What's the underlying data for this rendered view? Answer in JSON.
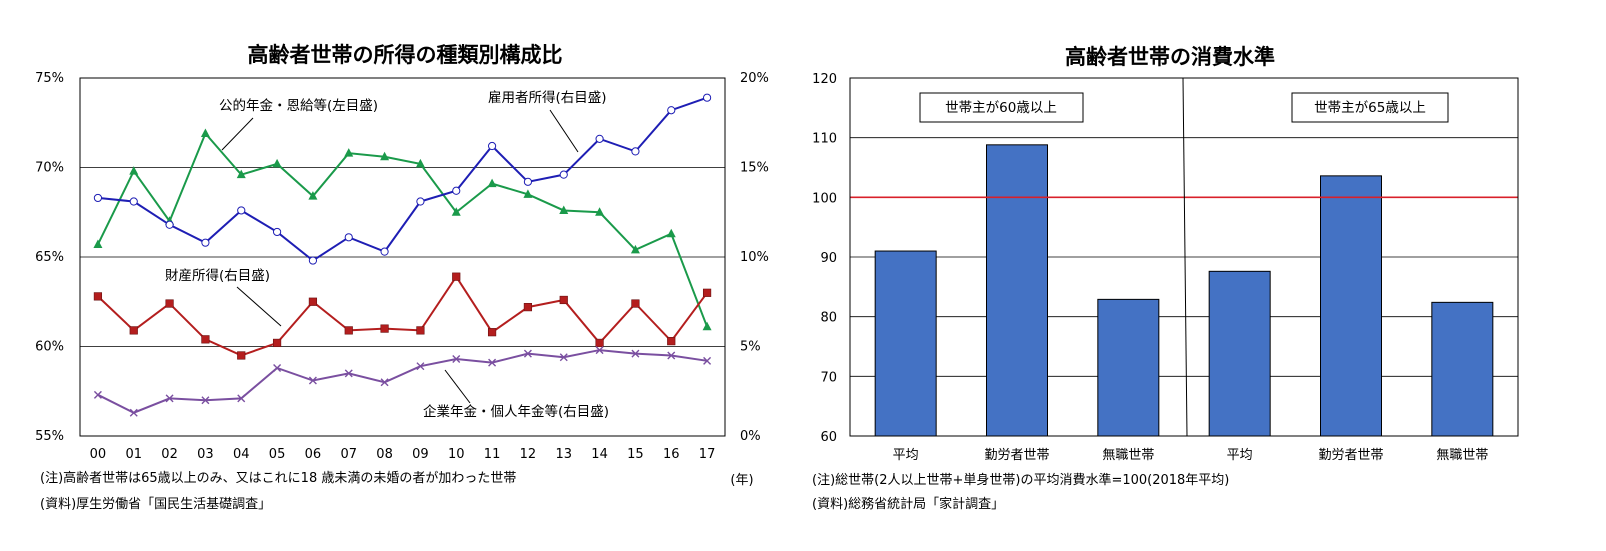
{
  "chart_data": [
    {
      "type": "line",
      "title": "高齢者世帯の所得の種類別構成比",
      "categories": [
        "00",
        "01",
        "02",
        "03",
        "04",
        "05",
        "06",
        "07",
        "08",
        "09",
        "10",
        "11",
        "12",
        "13",
        "14",
        "15",
        "16",
        "17"
      ],
      "x_unit": "(年)",
      "left_axis": {
        "ticks": [
          "55%",
          "60%",
          "65%",
          "70%",
          "75%"
        ],
        "ylim": [
          55,
          75
        ]
      },
      "right_axis": {
        "ticks": [
          "0%",
          "5%",
          "10%",
          "15%",
          "20%"
        ],
        "ylim": [
          0,
          20
        ]
      },
      "grid": true,
      "series": [
        {
          "name": "公的年金・恩給等(左目盛)",
          "axis": "left",
          "color": "#1a9a4a",
          "marker": "triangle",
          "values": [
            65.7,
            69.8,
            67.0,
            71.9,
            69.6,
            70.2,
            68.4,
            70.8,
            70.6,
            70.2,
            67.5,
            69.1,
            68.5,
            67.6,
            67.5,
            65.4,
            66.3,
            61.1
          ]
        },
        {
          "name": "雇用者所得(右目盛)",
          "axis": "right",
          "color": "#1e1eb4",
          "marker": "circle",
          "values": [
            13.3,
            13.1,
            11.8,
            10.8,
            12.6,
            11.4,
            9.8,
            11.1,
            10.3,
            13.1,
            13.7,
            16.2,
            14.2,
            14.6,
            16.6,
            15.9,
            18.2,
            18.9
          ]
        },
        {
          "name": "財産所得(右目盛)",
          "axis": "right",
          "color": "#b41e1e",
          "marker": "square",
          "values": [
            7.8,
            5.9,
            7.4,
            5.4,
            4.5,
            5.2,
            7.5,
            5.9,
            6.0,
            5.9,
            8.9,
            5.8,
            7.2,
            7.6,
            5.2,
            7.4,
            5.3,
            8.0
          ]
        },
        {
          "name": "企業年金・個人年金等(右目盛)",
          "axis": "right",
          "color": "#7a4fa0",
          "marker": "x",
          "values": [
            2.3,
            1.3,
            2.1,
            2.0,
            2.1,
            3.8,
            3.1,
            3.5,
            3.0,
            3.9,
            4.3,
            4.1,
            4.6,
            4.4,
            4.8,
            4.6,
            4.5,
            4.2
          ]
        }
      ],
      "notes": [
        "(注)高齢者世帯は65歳以上のみ、又はこれに18 歳未満の未婚の者が加わった世帯",
        "(資料)厚生労働省「国民生活基礎調査」"
      ]
    },
    {
      "type": "bar",
      "title": "高齢者世帯の消費水準",
      "categories": [
        "平均",
        "勤労者世帯",
        "無職世帯",
        "平均",
        "勤労者世帯",
        "無職世帯"
      ],
      "groups": [
        "世帯主が60歳以上",
        "世帯主が65歳以上"
      ],
      "values": [
        91.0,
        108.8,
        82.9,
        87.6,
        103.6,
        82.4
      ],
      "ylim": [
        60,
        120
      ],
      "y_ticks": [
        "60",
        "70",
        "80",
        "90",
        "100",
        "110",
        "120"
      ],
      "reference_line": 100,
      "bar_color": "#4472c4",
      "reference_color": "#d9202a",
      "grid": true,
      "notes": [
        "(注)総世帯(2人以上世帯+単身世帯)の平均消費水準=100(2018年平均)",
        "(資料)総務省統計局「家計調査」"
      ]
    }
  ]
}
